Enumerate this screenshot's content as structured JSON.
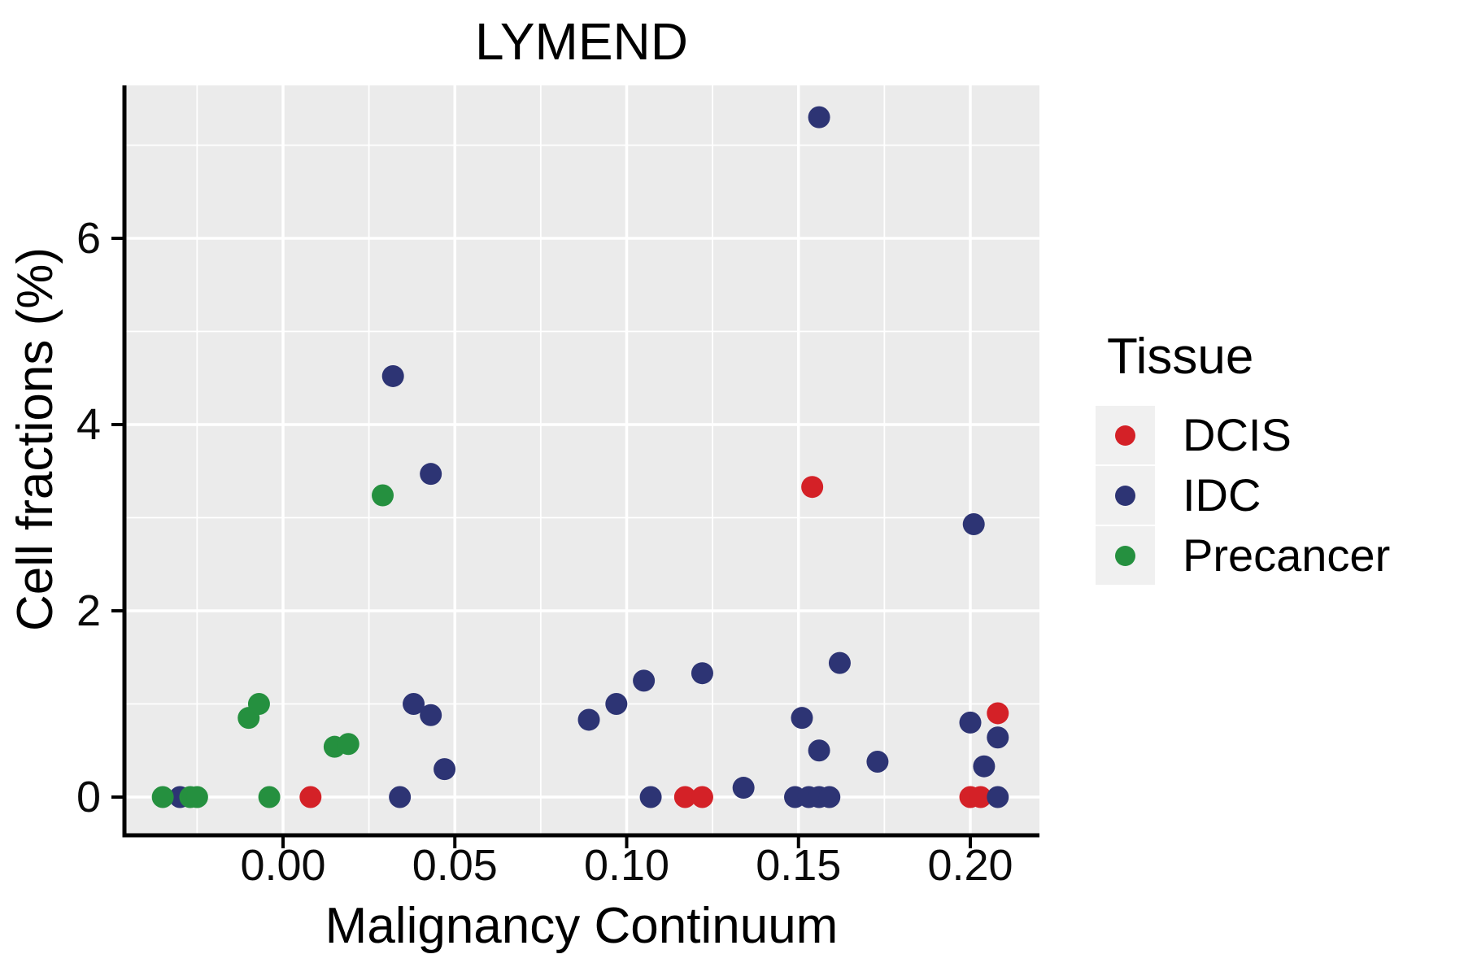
{
  "title": "LYMEND",
  "axes": {
    "x": {
      "label": "Malignancy Continuum",
      "ticks": [
        "0.00",
        "0.05",
        "0.10",
        "0.15",
        "0.20"
      ],
      "tick_values": [
        0,
        0.05,
        0.1,
        0.15,
        0.2
      ],
      "minor_values": [
        -0.025,
        0.025,
        0.075,
        0.125,
        0.175
      ]
    },
    "y": {
      "label": "Cell fractions (%)",
      "ticks": [
        "0",
        "2",
        "4",
        "6"
      ],
      "tick_values": [
        0,
        2,
        4,
        6
      ],
      "minor_values": [
        1,
        3,
        5,
        7
      ]
    }
  },
  "legend": {
    "title": "Tissue",
    "items": [
      {
        "label": "DCIS",
        "color": "#D42127"
      },
      {
        "label": "IDC",
        "color": "#2D3474"
      },
      {
        "label": "Precancer",
        "color": "#25903F"
      }
    ]
  },
  "colors": {
    "panel_background": "#EBEBEB",
    "gridline": "#FFFFFF",
    "axis_line": "#000000",
    "legend_key_background": "#F0F0F0"
  },
  "chart_data": {
    "type": "scatter",
    "title": "LYMEND",
    "xlabel": "Malignancy Continuum",
    "ylabel": "Cell fractions (%)",
    "xlim": [
      -0.046,
      0.22
    ],
    "ylim": [
      -0.41,
      7.64
    ],
    "grid": "on",
    "legend_position": "right",
    "series": [
      {
        "name": "DCIS",
        "color": "#D42127",
        "points": [
          [
            0.008,
            0
          ],
          [
            0.117,
            0
          ],
          [
            0.122,
            0
          ],
          [
            0.154,
            3.33
          ],
          [
            0.2,
            0
          ],
          [
            0.203,
            0
          ],
          [
            0.208,
            0.9
          ]
        ]
      },
      {
        "name": "IDC",
        "color": "#2D3474",
        "points": [
          [
            -0.03,
            0
          ],
          [
            0.032,
            4.52
          ],
          [
            0.043,
            3.47
          ],
          [
            0.034,
            0
          ],
          [
            0.038,
            1.0
          ],
          [
            0.043,
            0.88
          ],
          [
            0.047,
            0.3
          ],
          [
            0.089,
            0.83
          ],
          [
            0.097,
            1.0
          ],
          [
            0.105,
            1.25
          ],
          [
            0.122,
            1.33
          ],
          [
            0.107,
            0
          ],
          [
            0.134,
            0.1
          ],
          [
            0.149,
            0
          ],
          [
            0.153,
            0
          ],
          [
            0.156,
            0
          ],
          [
            0.159,
            0
          ],
          [
            0.151,
            0.85
          ],
          [
            0.156,
            0.5
          ],
          [
            0.156,
            7.3
          ],
          [
            0.162,
            1.44
          ],
          [
            0.173,
            0.38
          ],
          [
            0.201,
            2.93
          ],
          [
            0.2,
            0.8
          ],
          [
            0.208,
            0.64
          ],
          [
            0.204,
            0.33
          ],
          [
            0.208,
            0
          ]
        ]
      },
      {
        "name": "Precancer",
        "color": "#25903F",
        "points": [
          [
            -0.035,
            0
          ],
          [
            -0.027,
            0
          ],
          [
            -0.025,
            0
          ],
          [
            -0.004,
            0
          ],
          [
            -0.01,
            0.85
          ],
          [
            -0.007,
            1.0
          ],
          [
            0.015,
            0.54
          ],
          [
            0.019,
            0.57
          ],
          [
            0.029,
            3.24
          ]
        ]
      }
    ]
  }
}
